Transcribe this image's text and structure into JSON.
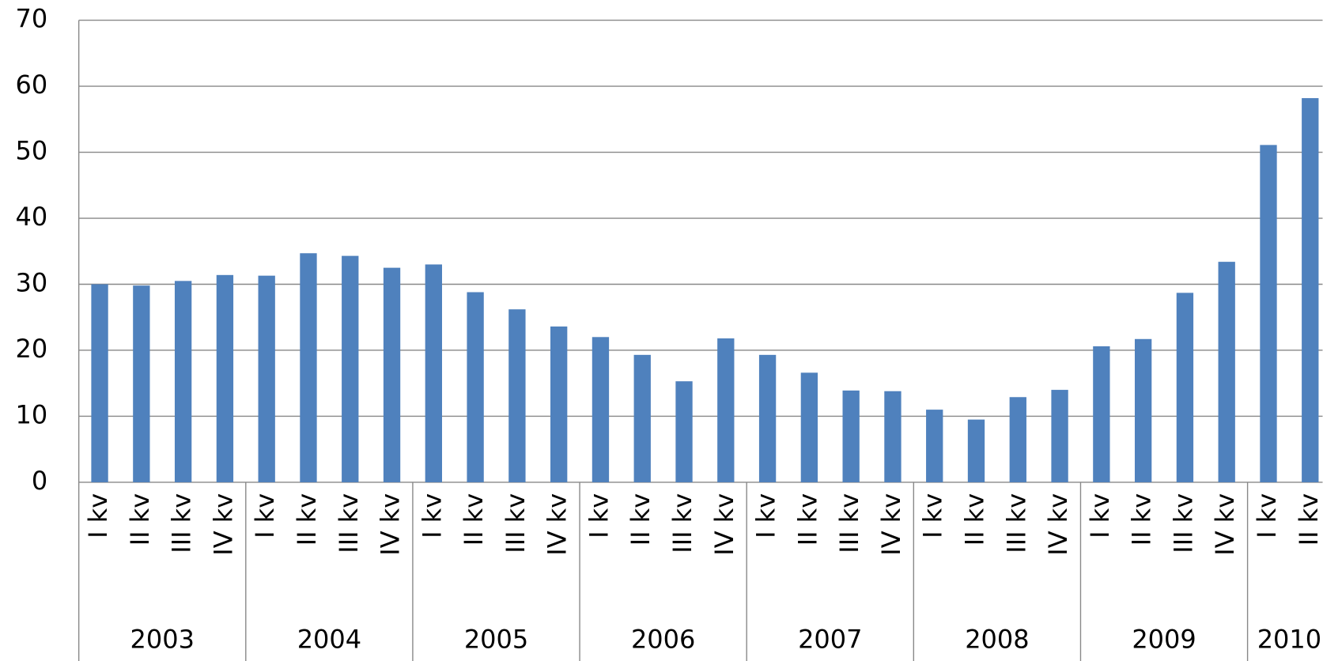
{
  "chart_data": {
    "type": "bar",
    "color": "#4f81bd",
    "grid": true,
    "ylim": [
      0,
      70
    ],
    "yticks": [
      0,
      10,
      20,
      30,
      40,
      50,
      60,
      70
    ],
    "groups": [
      {
        "name": "2003",
        "categories": [
          "I kv",
          "II kv",
          "III kv",
          "IV kv"
        ],
        "values": [
          30,
          29.8,
          30.5,
          31.4
        ]
      },
      {
        "name": "2004",
        "categories": [
          "I kv",
          "II kv",
          "III kv",
          "IV kv"
        ],
        "values": [
          31.3,
          34.7,
          34.3,
          32.5
        ]
      },
      {
        "name": "2005",
        "categories": [
          "I kv",
          "II kv",
          "III kv",
          "IV kv"
        ],
        "values": [
          33,
          28.8,
          26.2,
          23.6
        ]
      },
      {
        "name": "2006",
        "categories": [
          "I kv",
          "II kv",
          "III kv",
          "IV kv"
        ],
        "values": [
          22,
          19.3,
          15.3,
          21.8
        ]
      },
      {
        "name": "2007",
        "categories": [
          "I kv",
          "II kv",
          "III kv",
          "IV kv"
        ],
        "values": [
          19.3,
          16.6,
          13.9,
          13.8
        ]
      },
      {
        "name": "2008",
        "categories": [
          "I kv",
          "II kv",
          "III kv",
          "IV kv"
        ],
        "values": [
          11,
          9.5,
          12.9,
          14
        ]
      },
      {
        "name": "2009",
        "categories": [
          "I kv",
          "II kv",
          "III kv",
          "IV kv"
        ],
        "values": [
          20.6,
          21.7,
          28.7,
          33.4
        ]
      },
      {
        "name": "2010",
        "categories": [
          "I kv",
          "II kv"
        ],
        "values": [
          51.1,
          58.2
        ]
      }
    ]
  }
}
